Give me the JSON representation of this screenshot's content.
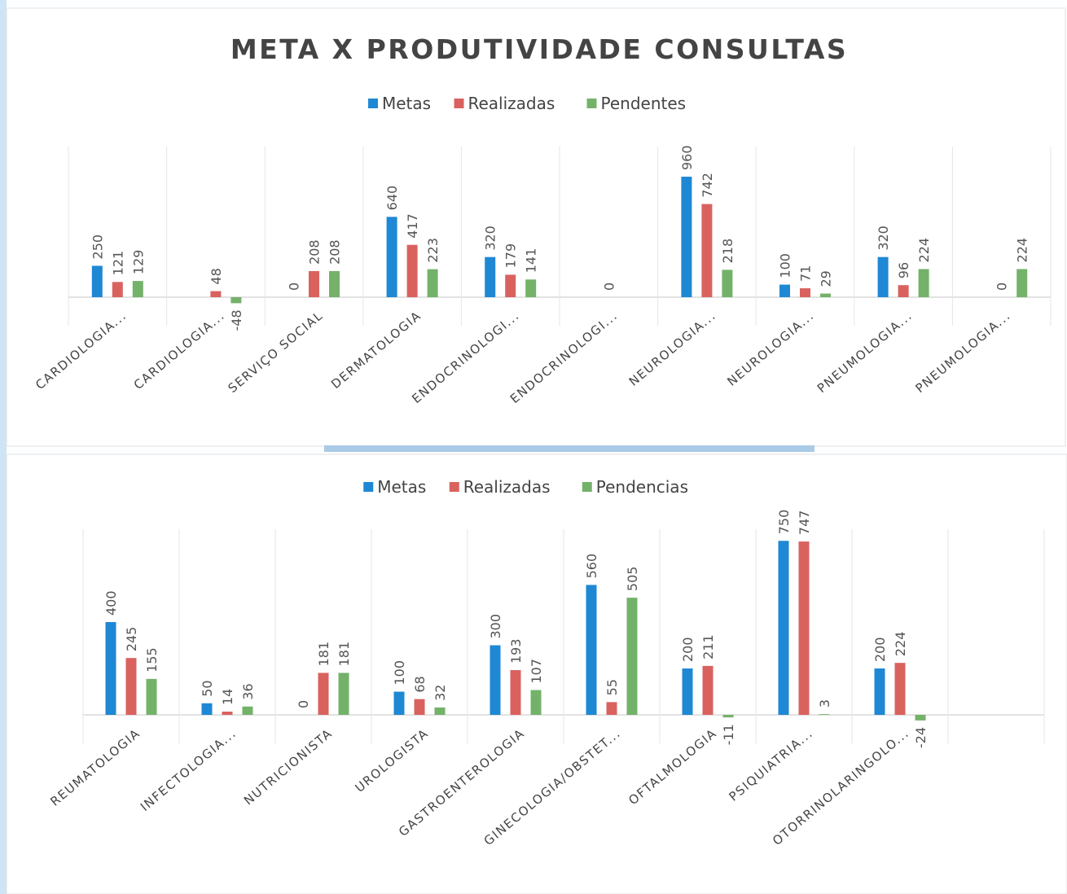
{
  "chart_data": [
    {
      "type": "bar",
      "title": "META X PRODUTIVIDADE CONSULTAS",
      "categories": [
        "CARDIOLOGIA...",
        "CARDIOLOGIA...",
        "SERVIÇO SOCIAL",
        "DERMATOLOGIA",
        "ENDOCRINOLOGI...",
        "ENDOCRINOLOGI...",
        "NEUROLOGIA...",
        "NEUROLOGIA...",
        "PNEUMOLOGIA...",
        "PNEUMOLOGIA..."
      ],
      "series": [
        {
          "name": "Metas",
          "color": "#1f88d4",
          "values": [
            250,
            null,
            0,
            640,
            320,
            null,
            960,
            100,
            320,
            null
          ]
        },
        {
          "name": "Realizadas",
          "color": "#d9625f",
          "values": [
            121,
            48,
            208,
            417,
            179,
            0,
            742,
            71,
            96,
            0
          ]
        },
        {
          "name": "Pendentes",
          "color": "#74b26a",
          "values": [
            129,
            -48,
            208,
            223,
            141,
            null,
            218,
            29,
            224,
            224
          ]
        }
      ],
      "ylim": [
        -100,
        1200
      ],
      "legend": "top"
    },
    {
      "type": "bar",
      "categories": [
        "REUMATOLOGIA",
        "INFECTOLOGIA...",
        "NUTRICIONISTA",
        "UROLOGISTA",
        "GASTROENTEROLOGIA",
        "GINECOLOGIA/OBSTET...",
        "OFTALMOLOGIA",
        "PSIQUIATRIA...",
        "OTORRINOLARINGOLO...",
        null
      ],
      "series": [
        {
          "name": "Metas",
          "color": "#1f88d4",
          "values": [
            400,
            50,
            0,
            100,
            300,
            560,
            200,
            750,
            200,
            null
          ]
        },
        {
          "name": "Realizadas",
          "color": "#d9625f",
          "values": [
            245,
            14,
            181,
            68,
            193,
            55,
            211,
            747,
            224,
            null
          ]
        },
        {
          "name": "Pendencias",
          "color": "#74b26a",
          "values": [
            155,
            36,
            181,
            32,
            107,
            505,
            -11,
            3,
            -24,
            null
          ]
        }
      ],
      "ylim": [
        -100,
        800
      ],
      "legend": "top"
    }
  ]
}
